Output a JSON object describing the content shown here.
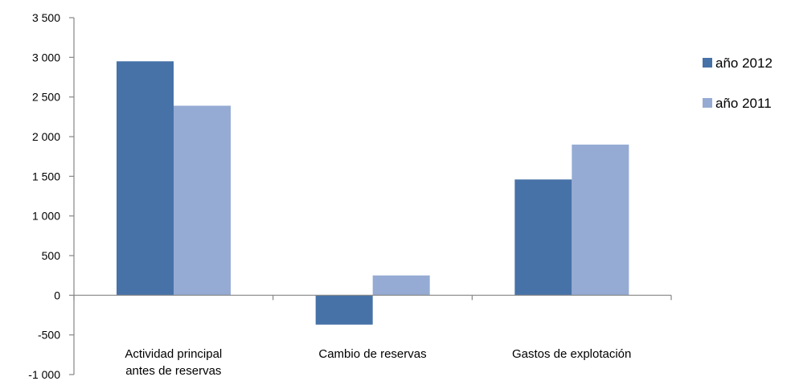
{
  "chart_data": {
    "type": "bar",
    "categories": [
      [
        "Actividad principal",
        "antes de reservas"
      ],
      [
        "Cambio de reservas"
      ],
      [
        "Gastos de explotación"
      ]
    ],
    "series": [
      {
        "name": "año 2012",
        "color": "#4672A8",
        "values": [
          2950,
          -370,
          1460
        ]
      },
      {
        "name": "año 2011",
        "color": "#95ABD3",
        "values": [
          2390,
          250,
          1900
        ]
      }
    ],
    "yticks": [
      {
        "value": 3500,
        "label": "3 500"
      },
      {
        "value": 3000,
        "label": "3 000"
      },
      {
        "value": 2500,
        "label": "2 500"
      },
      {
        "value": 2000,
        "label": "2 000"
      },
      {
        "value": 1500,
        "label": "1 500"
      },
      {
        "value": 1000,
        "label": "1 000"
      },
      {
        "value": 500,
        "label": "500"
      },
      {
        "value": 0,
        "label": "0"
      },
      {
        "value": -500,
        "label": "-500"
      },
      {
        "value": -1000,
        "label": "-1 000"
      }
    ],
    "ylim": [
      -1000,
      3500
    ],
    "title": "",
    "xlabel": "",
    "ylabel": "",
    "grid": false,
    "legend_position": "right"
  }
}
